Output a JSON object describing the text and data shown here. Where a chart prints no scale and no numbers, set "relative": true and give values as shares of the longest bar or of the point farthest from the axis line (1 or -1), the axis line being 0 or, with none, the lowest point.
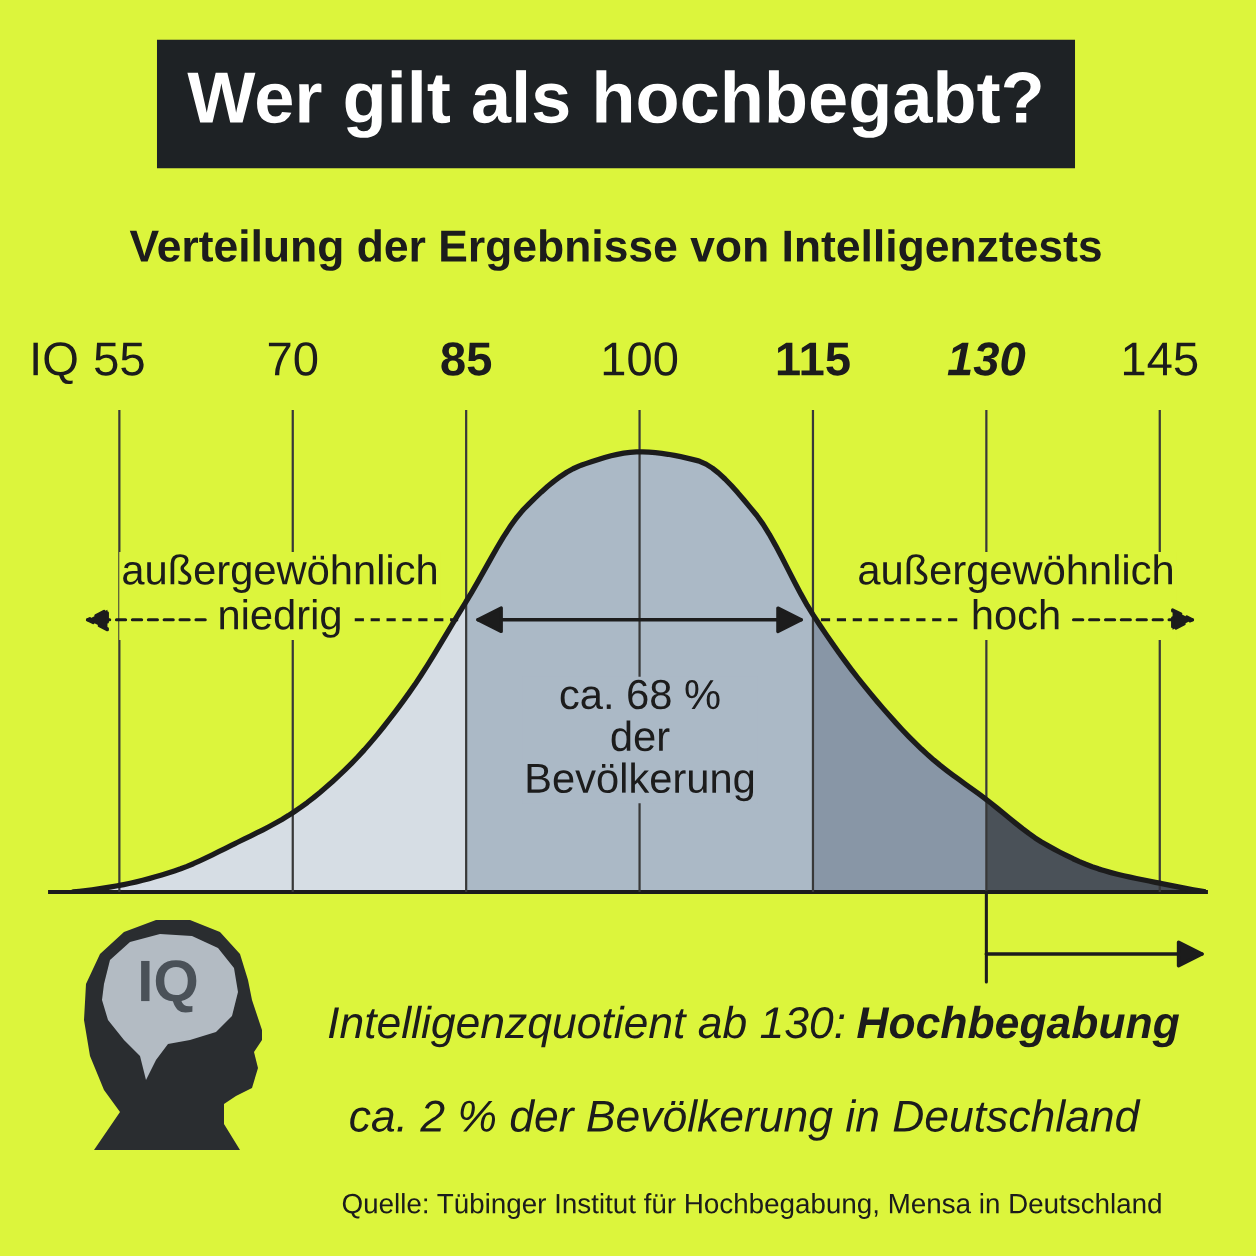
{
  "chart_data": {
    "type": "area",
    "title": "Wer gilt als hochbegabt?",
    "subtitle": "Verteilung der Ergebnisse von Intelligenztests",
    "xlabel": "IQ",
    "relative": true,
    "xlim": [
      49,
      149
    ],
    "xticks": [
      55,
      70,
      85,
      100,
      115,
      130,
      145
    ],
    "grid": "x",
    "series": [
      {
        "type": "line",
        "color": "#1c1c1c",
        "x": [
          51,
          55,
          60,
          65,
          70,
          75,
          80,
          85,
          90,
          95,
          100,
          105,
          110,
          115,
          120,
          125,
          130,
          135,
          140,
          145,
          149
        ],
        "values": [
          0,
          0.015,
          0.05,
          0.11,
          0.18,
          0.29,
          0.45,
          0.66,
          0.87,
          0.97,
          1,
          0.98,
          0.86,
          0.63,
          0.45,
          0.31,
          0.21,
          0.11,
          0.05,
          0.02,
          0
        ]
      },
      {
        "color": "#d6dde4",
        "x": [
          51,
          55,
          60,
          65,
          70,
          75,
          80,
          85
        ],
        "values": [
          0,
          0.015,
          0.05,
          0.11,
          0.18,
          0.29,
          0.45,
          0.66
        ]
      },
      {
        "color": "#abb9c6",
        "x": [
          85,
          90,
          95,
          100,
          105,
          110,
          115
        ],
        "values": [
          0.66,
          0.87,
          0.97,
          1,
          0.98,
          0.86,
          0.63
        ]
      },
      {
        "color": "#8896a6",
        "x": [
          115,
          120,
          125,
          130
        ],
        "values": [
          0.63,
          0.45,
          0.31,
          0.21
        ]
      },
      {
        "color": "#4a5158",
        "x": [
          130,
          135,
          140,
          145,
          149
        ],
        "values": [
          0.21,
          0.11,
          0.05,
          0.02,
          0
        ]
      }
    ],
    "annotations": [
      "außergewöhnlich\nniedrig",
      "außergewöhnlich\nhoch",
      "ca. 68 %\nder\nBevölkerung",
      "IQ",
      "Intelligenzquotient ab 130:",
      "Hochbegabung",
      "ca. 2 % der Bevölkerung in Deutschland",
      "Quelle: Tübinger Institut für Hochbegabung, Mensa in Deutschland"
    ]
  }
}
